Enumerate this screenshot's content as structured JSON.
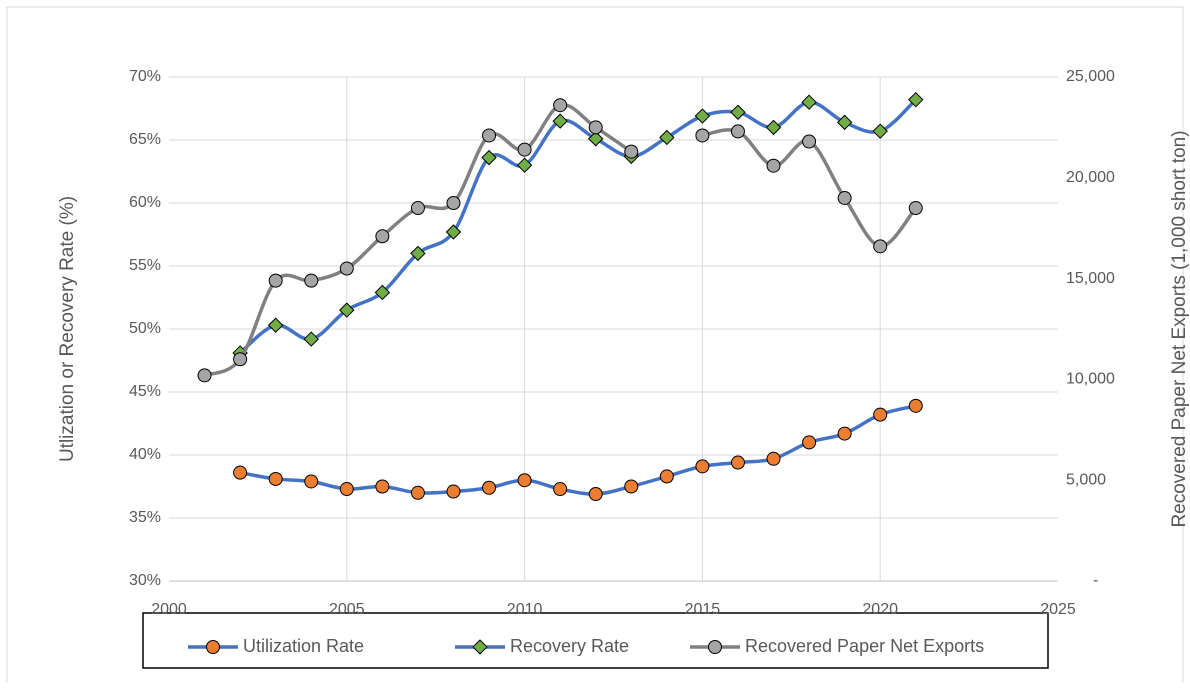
{
  "chart_data": {
    "type": "line",
    "y_label": "Utlization or Recovery Rate (%)",
    "y2_label": "Recovered Paper Net Exports (1,000 short ton)",
    "x": [
      2001,
      2002,
      2003,
      2004,
      2005,
      2006,
      2007,
      2008,
      2009,
      2010,
      2011,
      2012,
      2013,
      2014,
      2015,
      2016,
      2017,
      2018,
      2019,
      2020,
      2021
    ],
    "series": [
      {
        "name": "Utilization Rate",
        "color": "#4472c4",
        "marker_color": "#ed7d31",
        "marker": "circle",
        "values": [
          null,
          38.6,
          38.1,
          37.9,
          37.3,
          37.5,
          37.0,
          37.1,
          37.4,
          38.0,
          37.3,
          36.9,
          37.5,
          38.3,
          39.1,
          39.4,
          39.7,
          41.0,
          41.7,
          43.2,
          43.9
        ]
      },
      {
        "name": "Recovery Rate",
        "color": "#4472c4",
        "marker_color": "#70ad47",
        "marker": "diamond",
        "values": [
          null,
          48.1,
          50.3,
          49.2,
          51.5,
          52.9,
          56.0,
          57.7,
          63.6,
          63.0,
          66.5,
          65.1,
          63.7,
          65.2,
          66.9,
          67.2,
          66.0,
          68.0,
          66.4,
          65.7,
          68.2
        ]
      },
      {
        "name": "Recovered Paper Net Exports",
        "color": "#808080",
        "marker_color": "#a5a5a5",
        "marker": "circle",
        "axis": "y2",
        "values": [
          10200,
          11000,
          14900,
          14900,
          15500,
          17100,
          18500,
          18750,
          22100,
          21400,
          23600,
          22500,
          21300,
          null,
          22100,
          22300,
          20600,
          21800,
          19000,
          16600,
          18500
        ]
      }
    ],
    "xlim": [
      2000,
      2025
    ],
    "xticks": [
      2000,
      2005,
      2010,
      2015,
      2020,
      2025
    ],
    "ylim": [
      30,
      70
    ],
    "yticks": [
      {
        "value": 30,
        "label": "30%"
      },
      {
        "value": 35,
        "label": "35%"
      },
      {
        "value": 40,
        "label": "40%"
      },
      {
        "value": 45,
        "label": "45%"
      },
      {
        "value": 50,
        "label": "50%"
      },
      {
        "value": 55,
        "label": "55%"
      },
      {
        "value": 60,
        "label": "60%"
      },
      {
        "value": 65,
        "label": "65%"
      },
      {
        "value": 70,
        "label": "70%"
      }
    ],
    "y2lim": [
      0,
      25000
    ],
    "y2ticks": [
      {
        "value": 0,
        "label": "-"
      },
      {
        "value": 5000,
        "label": "5,000"
      },
      {
        "value": 10000,
        "label": "10,000"
      },
      {
        "value": 15000,
        "label": "15,000"
      },
      {
        "value": 20000,
        "label": "20,000"
      },
      {
        "value": 25000,
        "label": "25,000"
      }
    ],
    "grid": true,
    "legend": "bottom"
  }
}
